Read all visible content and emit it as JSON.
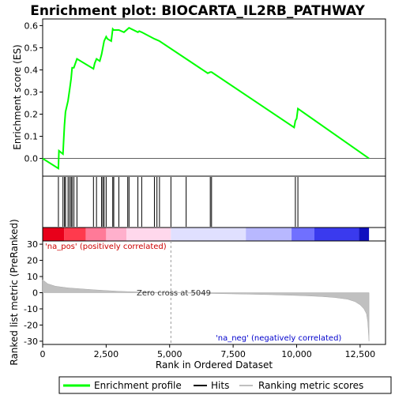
{
  "chart_data": {
    "type": "line",
    "title": "Enrichment plot: BIOCARTA_IL2RB_PATHWAY",
    "top_panel": {
      "ylabel": "Enrichment score (ES)",
      "ylim": [
        -0.08,
        0.63
      ],
      "yticks": [
        "0.0",
        "0.1",
        "0.2",
        "0.3",
        "0.4",
        "0.5",
        "0.6"
      ],
      "ytick_values": [
        0.0,
        0.1,
        0.2,
        0.3,
        0.4,
        0.5,
        0.6
      ],
      "series_color": "#00ff00",
      "x": [
        0,
        620,
        640,
        800,
        830,
        860,
        900,
        1000,
        1060,
        1120,
        1160,
        1230,
        1350,
        2000,
        2050,
        2120,
        2250,
        2320,
        2370,
        2420,
        2500,
        2550,
        2700,
        2760,
        2800,
        3000,
        3200,
        3350,
        3400,
        3750,
        3800,
        3900,
        4400,
        4500,
        4600,
        6500,
        6600,
        6650,
        9900,
        9950,
        10000,
        10050,
        12850
      ],
      "values": [
        0.0,
        -0.045,
        0.035,
        0.02,
        0.09,
        0.15,
        0.21,
        0.26,
        0.31,
        0.36,
        0.41,
        0.41,
        0.45,
        0.405,
        0.43,
        0.45,
        0.44,
        0.47,
        0.5,
        0.53,
        0.55,
        0.54,
        0.53,
        0.585,
        0.58,
        0.58,
        0.57,
        0.585,
        0.59,
        0.57,
        0.575,
        0.57,
        0.54,
        0.535,
        0.53,
        0.385,
        0.39,
        0.39,
        0.14,
        0.17,
        0.18,
        0.225,
        0.0
      ]
    },
    "hits": [
      620,
      800,
      860,
      900,
      1000,
      1060,
      1120,
      1160,
      1230,
      1350,
      2000,
      2120,
      2320,
      2370,
      2420,
      2500,
      2760,
      2800,
      3000,
      3350,
      3400,
      3750,
      3900,
      4400,
      4500,
      4600,
      5050,
      5650,
      6600,
      6650,
      9950,
      10050
    ],
    "bottom_panel": {
      "ylabel": "Ranked list metric (PreRanked)",
      "xlabel": "Rank in Ordered Dataset",
      "ylim": [
        -32,
        32
      ],
      "yticks": [
        "30",
        "20",
        "10",
        "0",
        "-10",
        "-20",
        "-30"
      ],
      "ytick_values": [
        30,
        20,
        10,
        0,
        -10,
        -20,
        -30
      ],
      "rank_x": [
        0,
        200,
        500,
        1000,
        1500,
        2000,
        2500,
        3000,
        3500,
        4000,
        4500,
        5049,
        6000,
        7000,
        8000,
        9000,
        10000,
        10500,
        11000,
        11500,
        12000,
        12300,
        12500,
        12650,
        12750,
        12800,
        12850
      ],
      "metric": [
        8.0,
        5.5,
        4.0,
        3.0,
        2.4,
        1.8,
        1.3,
        0.9,
        0.6,
        0.4,
        0.2,
        0.0,
        -0.3,
        -0.6,
        -0.9,
        -1.2,
        -1.7,
        -2.0,
        -2.4,
        -3.0,
        -4.0,
        -5.5,
        -7.5,
        -10.0,
        -13.0,
        -18.0,
        -30.0
      ],
      "pos_label": "'na_pos' (positively correlated)",
      "neg_label": "'na_neg' (negatively correlated)",
      "zero_cross_label": "Zero cross at 5049",
      "zero_cross": 5049
    },
    "xlim": [
      0,
      13500
    ],
    "xticks": [
      "0",
      "2,500",
      "5,000",
      "7,500",
      "10,000",
      "12,500"
    ],
    "xtick_values": [
      0,
      2500,
      5000,
      7500,
      10000,
      12500
    ],
    "heat_colors": [
      "#e8001a",
      "#ff3a4d",
      "#ff7a98",
      "#ffb0cc",
      "#ffd8ec",
      "#e0e0ff",
      "#b8b8ff",
      "#7070ff",
      "#3a3aee",
      "#1010c0"
    ],
    "legend": [
      {
        "label": "Enrichment profile",
        "color": "#00ff00"
      },
      {
        "label": "Hits",
        "color": "#000000"
      },
      {
        "label": "Ranking metric scores",
        "color": "#c0c0c0"
      }
    ]
  }
}
